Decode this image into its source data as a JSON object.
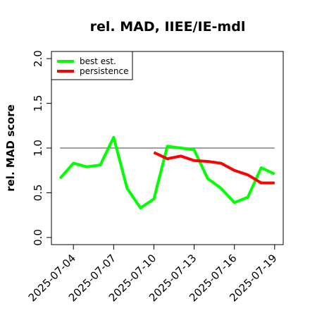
{
  "chart_data": {
    "type": "line",
    "title": "rel. MAD, IIEE/IE-mdl",
    "y_label": "rel. MAD score",
    "x": [
      "2025-07-03",
      "2025-07-04",
      "2025-07-05",
      "2025-07-06",
      "2025-07-07",
      "2025-07-08",
      "2025-07-09",
      "2025-07-10",
      "2025-07-11",
      "2025-07-12",
      "2025-07-13",
      "2025-07-14",
      "2025-07-15",
      "2025-07-16",
      "2025-07-17",
      "2025-07-18",
      "2025-07-19"
    ],
    "series": [
      {
        "name": "best est.",
        "color": "#00ff00",
        "values": [
          0.66,
          0.83,
          0.79,
          0.81,
          1.12,
          0.55,
          0.33,
          0.43,
          1.02,
          1.0,
          0.98,
          0.66,
          0.55,
          0.39,
          0.45,
          0.78,
          0.71
        ]
      },
      {
        "name": "persistence",
        "color": "#ff0000",
        "values": [
          null,
          null,
          null,
          null,
          null,
          null,
          null,
          0.95,
          0.88,
          0.91,
          0.86,
          0.85,
          0.83,
          0.75,
          0.7,
          0.61,
          0.61
        ]
      }
    ],
    "reference_line": 1.0,
    "reference_color": "#808080",
    "ylim": [
      -0.08,
      2.08
    ],
    "yticks": [
      {
        "value": 0,
        "label": "0.0"
      },
      {
        "value": 0.5,
        "label": "0.5"
      },
      {
        "value": 1,
        "label": "1.0"
      },
      {
        "value": 1.5,
        "label": "1.5"
      },
      {
        "value": 2,
        "label": "2.0"
      }
    ],
    "xticks": [
      "2025-07-04",
      "2025-07-07",
      "2025-07-10",
      "2025-07-13",
      "2025-07-16",
      "2025-07-19"
    ],
    "legend": "top-left"
  }
}
